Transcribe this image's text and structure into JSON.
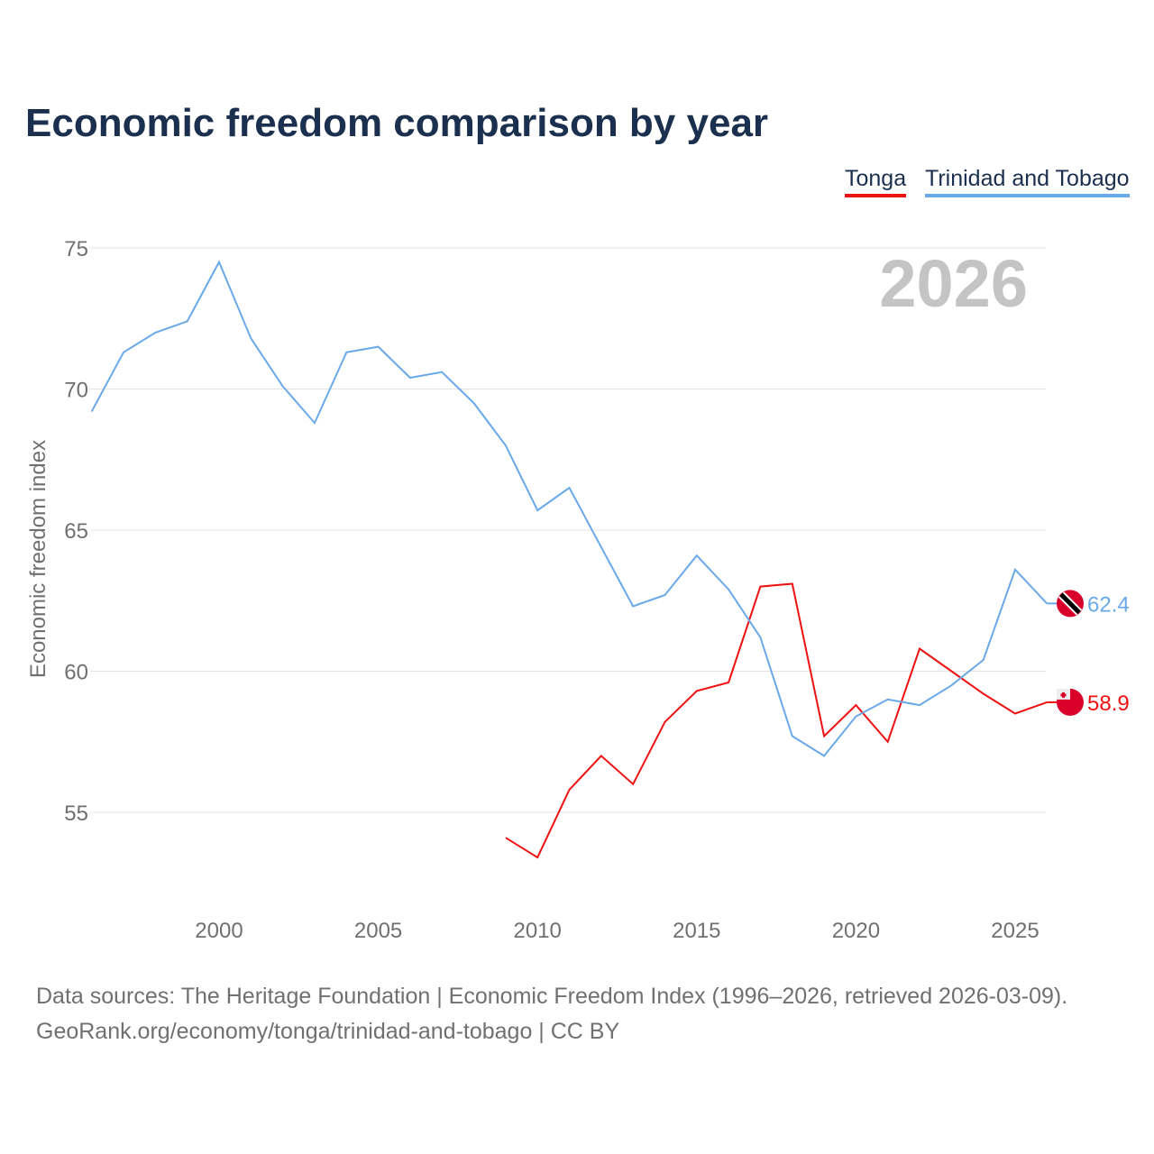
{
  "title": "Economic freedom comparison by year",
  "footer": {
    "line1": "Data sources: The Heritage Foundation | Economic Freedom Index (1996–2026, retrieved 2026-03-09).",
    "line2": "GeoRank.org/economy/tonga/trinidad-and-tobago | CC BY"
  },
  "chart_data": {
    "type": "line",
    "title": "Economic freedom comparison by year",
    "xlabel": "",
    "ylabel": "Economic freedom index",
    "xlim": [
      1996,
      2026
    ],
    "ylim": [
      52,
      76
    ],
    "xticks": [
      2000,
      2005,
      2010,
      2015,
      2020,
      2025
    ],
    "yticks": [
      55,
      60,
      65,
      70,
      75
    ],
    "year_label": "2026",
    "legend_position": "top-right",
    "series": [
      {
        "name": "Tonga",
        "color": "#ee1111",
        "end_label": "58.9",
        "flag": "tonga-flag-icon",
        "x": [
          2009,
          2010,
          2011,
          2012,
          2013,
          2014,
          2015,
          2016,
          2017,
          2018,
          2019,
          2020,
          2021,
          2022,
          2023,
          2024,
          2025,
          2026
        ],
        "values": [
          54.1,
          53.4,
          55.8,
          57.0,
          56.0,
          58.2,
          59.3,
          59.6,
          63.0,
          63.1,
          57.7,
          58.8,
          57.5,
          60.8,
          60.0,
          59.2,
          58.5,
          58.9
        ]
      },
      {
        "name": "Trinidad and Tobago",
        "color": "#6aa9e9",
        "end_label": "62.4",
        "flag": "trinidad-flag-icon",
        "x": [
          1996,
          1997,
          1998,
          1999,
          2000,
          2001,
          2002,
          2003,
          2004,
          2005,
          2006,
          2007,
          2008,
          2009,
          2010,
          2011,
          2012,
          2013,
          2014,
          2015,
          2016,
          2017,
          2018,
          2019,
          2020,
          2021,
          2022,
          2023,
          2024,
          2025,
          2026
        ],
        "values": [
          69.2,
          71.3,
          72.0,
          72.4,
          74.5,
          71.8,
          70.1,
          68.8,
          71.3,
          71.5,
          70.4,
          70.6,
          69.5,
          68.0,
          65.7,
          66.5,
          64.4,
          62.3,
          62.7,
          64.1,
          62.9,
          61.2,
          57.7,
          57.0,
          58.4,
          59.0,
          58.8,
          59.5,
          60.4,
          63.6,
          62.4
        ]
      }
    ]
  }
}
